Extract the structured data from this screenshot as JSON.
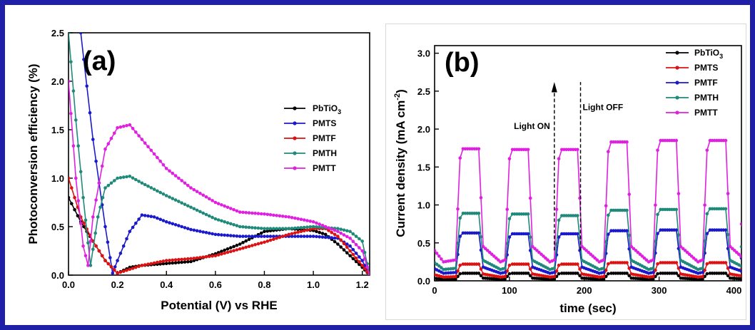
{
  "chart_data": [
    {
      "type": "line",
      "panel_label": "(a)",
      "xlabel": "Potential (V) vs RHE",
      "ylabel": "Photoconversion efficiency (%)",
      "xlim": [
        0.0,
        1.23
      ],
      "ylim": [
        0.0,
        2.5
      ],
      "xticks": [
        "0.0",
        "0.2",
        "0.4",
        "0.6",
        "0.8",
        "1.0",
        "1.2"
      ],
      "yticks": [
        "0.0",
        "0.5",
        "1.0",
        "1.5",
        "2.0",
        "2.5"
      ],
      "legend_position": "middle-right",
      "grid": false,
      "series": [
        {
          "name": "PbTiO",
          "name_sub": "3",
          "color": "#000000",
          "x": [
            0.0,
            0.05,
            0.1,
            0.15,
            0.2,
            0.25,
            0.3,
            0.4,
            0.5,
            0.6,
            0.7,
            0.8,
            0.9,
            1.0,
            1.05,
            1.1,
            1.15,
            1.2,
            1.23
          ],
          "y": [
            0.8,
            0.55,
            0.35,
            0.15,
            0.02,
            0.08,
            0.1,
            0.12,
            0.14,
            0.22,
            0.32,
            0.45,
            0.48,
            0.46,
            0.42,
            0.32,
            0.2,
            0.08,
            0.0
          ]
        },
        {
          "name": "PMTS",
          "color": "#1a1acc",
          "x": [
            0.05,
            0.1,
            0.15,
            0.18,
            0.2,
            0.25,
            0.3,
            0.35,
            0.4,
            0.5,
            0.6,
            0.7,
            0.8,
            0.9,
            1.0,
            1.1,
            1.15,
            1.2,
            1.23
          ],
          "y": [
            2.5,
            1.4,
            0.5,
            0.02,
            0.15,
            0.45,
            0.62,
            0.6,
            0.55,
            0.47,
            0.42,
            0.4,
            0.4,
            0.4,
            0.4,
            0.38,
            0.3,
            0.15,
            0.0
          ]
        },
        {
          "name": "PMTF",
          "color": "#dd1111",
          "x": [
            0.0,
            0.05,
            0.1,
            0.15,
            0.2,
            0.25,
            0.3,
            0.4,
            0.5,
            0.6,
            0.7,
            0.8,
            0.9,
            1.0,
            1.05,
            1.1,
            1.15,
            1.2,
            1.23
          ],
          "y": [
            1.0,
            0.6,
            0.35,
            0.15,
            0.02,
            0.06,
            0.1,
            0.15,
            0.17,
            0.2,
            0.27,
            0.34,
            0.42,
            0.48,
            0.48,
            0.4,
            0.25,
            0.1,
            0.0
          ]
        },
        {
          "name": "PMTH",
          "color": "#1f8a7a",
          "x": [
            0.0,
            0.03,
            0.06,
            0.09,
            0.12,
            0.15,
            0.2,
            0.25,
            0.3,
            0.4,
            0.5,
            0.6,
            0.7,
            0.8,
            0.9,
            1.0,
            1.1,
            1.15,
            1.2,
            1.23
          ],
          "y": [
            2.5,
            1.6,
            0.8,
            0.1,
            0.6,
            0.9,
            1.0,
            1.02,
            0.95,
            0.82,
            0.7,
            0.58,
            0.5,
            0.48,
            0.48,
            0.5,
            0.48,
            0.45,
            0.35,
            0.0
          ]
        },
        {
          "name": "PMTT",
          "color": "#e020e0",
          "x": [
            0.0,
            0.03,
            0.06,
            0.08,
            0.1,
            0.15,
            0.2,
            0.25,
            0.3,
            0.4,
            0.5,
            0.6,
            0.7,
            0.8,
            0.9,
            1.0,
            1.05,
            1.1,
            1.15,
            1.2,
            1.23
          ],
          "y": [
            2.0,
            1.0,
            0.3,
            0.1,
            0.6,
            1.3,
            1.52,
            1.55,
            1.4,
            1.1,
            0.9,
            0.75,
            0.65,
            0.63,
            0.6,
            0.55,
            0.5,
            0.45,
            0.38,
            0.25,
            0.0
          ]
        }
      ]
    },
    {
      "type": "line",
      "panel_label": "(b)",
      "xlabel": "time (sec)",
      "ylabel": "Current density (mA cm",
      "ylabel_sup": "-2",
      "ylabel_end": ")",
      "xlim": [
        0,
        410
      ],
      "ylim": [
        0.0,
        3.1
      ],
      "xticks": [
        "0",
        "100",
        "200",
        "300",
        "400"
      ],
      "yticks": [
        "0.0",
        "0.5",
        "1.0",
        "1.5",
        "2.0",
        "2.5",
        "3.0"
      ],
      "legend_position": "top-right",
      "grid": false,
      "annotations": [
        {
          "text": "Light ON",
          "x": 160
        },
        {
          "text": "Light OFF",
          "x": 195
        }
      ],
      "series": [
        {
          "name": "PbTiO",
          "name_sub": "3",
          "color": "#000000",
          "on": [
            0.1,
            0.1,
            0.1,
            0.1,
            0.1,
            0.1
          ],
          "off": 0.02
        },
        {
          "name": "PMTS",
          "color": "#dd1111",
          "on": [
            0.22,
            0.22,
            0.22,
            0.24,
            0.24,
            0.24
          ],
          "off": 0.05
        },
        {
          "name": "PMTF",
          "color": "#1a1acc",
          "on": [
            0.63,
            0.62,
            0.62,
            0.66,
            0.67,
            0.67
          ],
          "off": 0.1
        },
        {
          "name": "PMTH",
          "color": "#1f8a7a",
          "on": [
            0.89,
            0.88,
            0.86,
            0.93,
            0.94,
            0.95
          ],
          "off": 0.15
        },
        {
          "name": "PMTT",
          "color": "#e020e0",
          "on": [
            1.74,
            1.73,
            1.73,
            1.83,
            1.85,
            1.85
          ],
          "off": 0.25
        }
      ]
    }
  ]
}
